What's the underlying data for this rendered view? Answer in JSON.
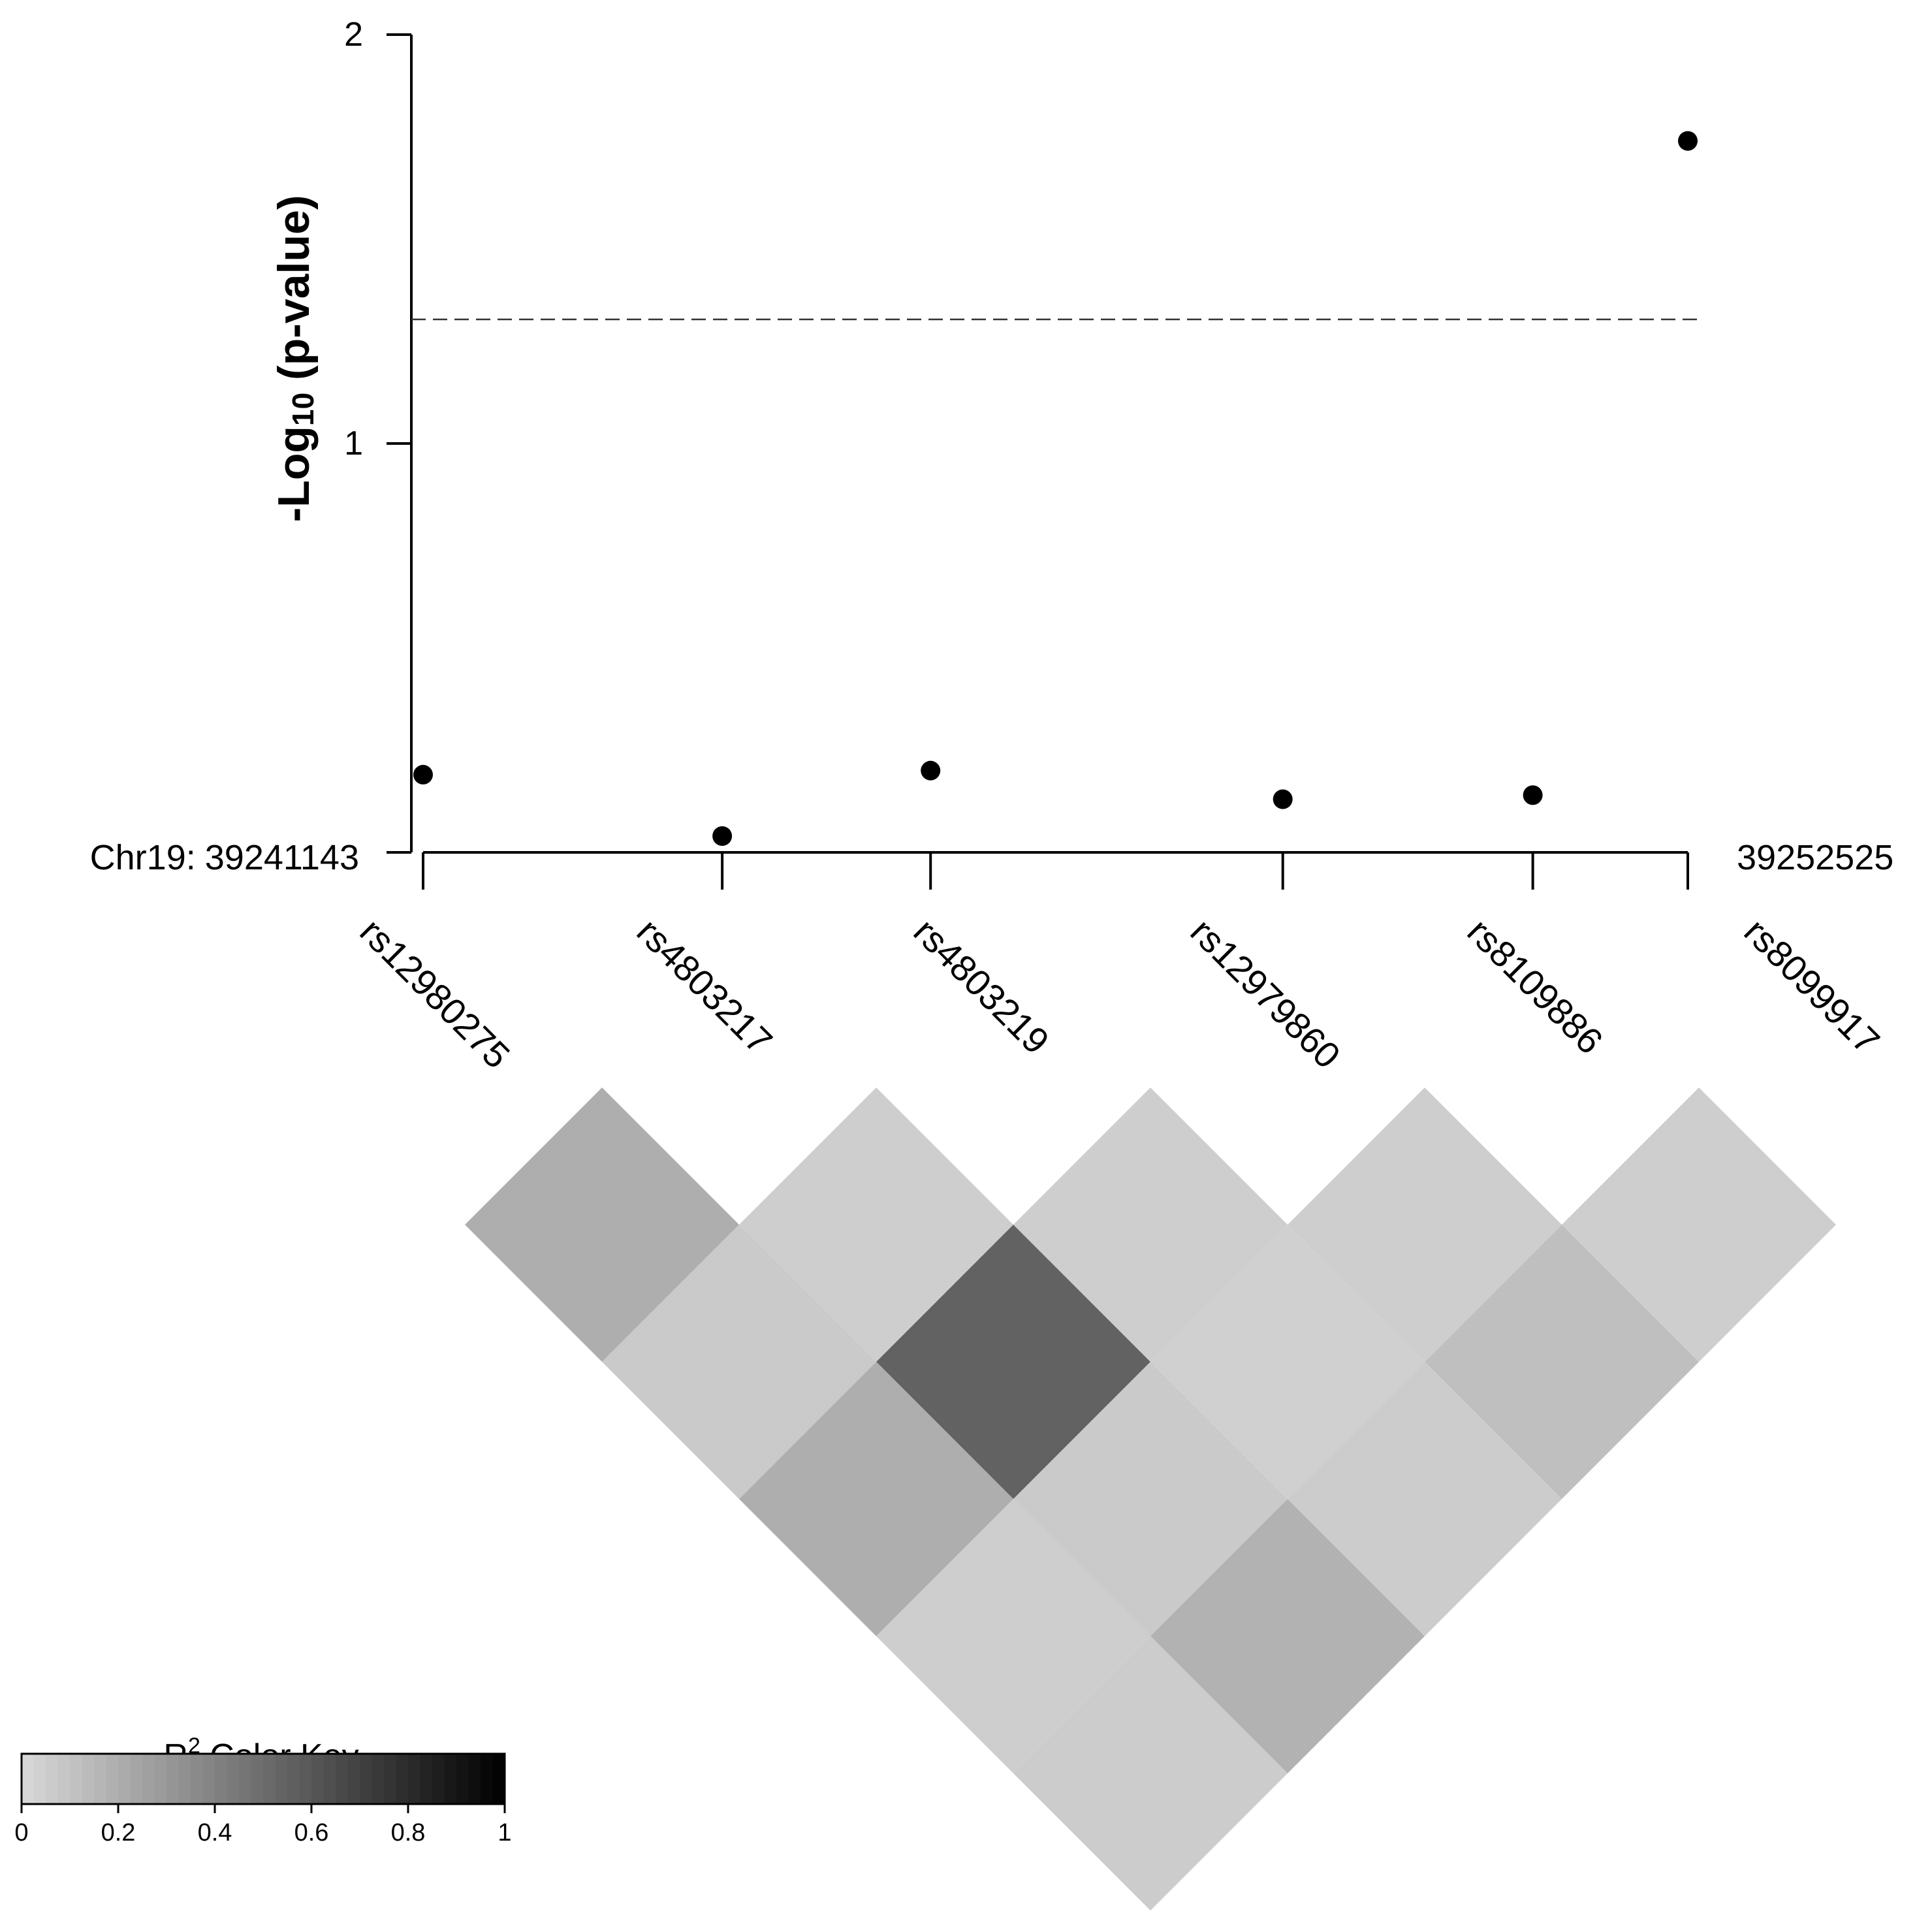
{
  "chart_data": {
    "type": "scatter",
    "title": "",
    "ylabel": {
      "prefix": "-Log",
      "subscript": "10",
      "suffix": " (p-value)"
    },
    "ylim": [
      0,
      2
    ],
    "yticks": [
      "0",
      "1",
      "2"
    ],
    "significance_line": 1.3,
    "region": {
      "chromosome_label": "Chr19:",
      "start": "39241143",
      "end": "39252525"
    },
    "snps": [
      {
        "id": "rs12980275",
        "pos": 39241143,
        "neg_log10_p": 0.19
      },
      {
        "id": "rs4803217",
        "pos": 39243835,
        "neg_log10_p": 0.04
      },
      {
        "id": "rs4803219",
        "pos": 39245710,
        "neg_log10_p": 0.2
      },
      {
        "id": "rs12979860",
        "pos": 39248880,
        "neg_log10_p": 0.13
      },
      {
        "id": "rs8109886",
        "pos": 39251130,
        "neg_log10_p": 0.14
      },
      {
        "id": "rs8099917",
        "pos": 39252525,
        "neg_log10_p": 1.74
      }
    ],
    "ld_r2": [
      {
        "pair": [
          "rs12980275",
          "rs4803217"
        ],
        "r2": 0.2
      },
      {
        "pair": [
          "rs4803217",
          "rs4803219"
        ],
        "r2": 0.05
      },
      {
        "pair": [
          "rs4803219",
          "rs12979860"
        ],
        "r2": 0.05
      },
      {
        "pair": [
          "rs12979860",
          "rs8109886"
        ],
        "r2": 0.05
      },
      {
        "pair": [
          "rs8109886",
          "rs8099917"
        ],
        "r2": 0.05
      },
      {
        "pair": [
          "rs12980275",
          "rs4803219"
        ],
        "r2": 0.07
      },
      {
        "pair": [
          "rs4803217",
          "rs12979860"
        ],
        "r2": 0.55
      },
      {
        "pair": [
          "rs4803219",
          "rs8109886"
        ],
        "r2": 0.04
      },
      {
        "pair": [
          "rs12979860",
          "rs8099917"
        ],
        "r2": 0.12
      },
      {
        "pair": [
          "rs12980275",
          "rs12979860"
        ],
        "r2": 0.2
      },
      {
        "pair": [
          "rs4803217",
          "rs8109886"
        ],
        "r2": 0.07
      },
      {
        "pair": [
          "rs4803219",
          "rs8099917"
        ],
        "r2": 0.06
      },
      {
        "pair": [
          "rs12980275",
          "rs8109886"
        ],
        "r2": 0.05
      },
      {
        "pair": [
          "rs4803217",
          "rs8099917"
        ],
        "r2": 0.18
      },
      {
        "pair": [
          "rs12980275",
          "rs8099917"
        ],
        "r2": 0.06
      }
    ],
    "color_key": {
      "title_main": "R",
      "title_superscript": "2",
      "title_suffix": " Color Key",
      "range": [
        0,
        1
      ],
      "ticks": [
        "0",
        "0.2",
        "0.4",
        "0.6",
        "0.8",
        "1"
      ],
      "low_color": "#d9d9d9",
      "high_color": "#000000"
    }
  }
}
